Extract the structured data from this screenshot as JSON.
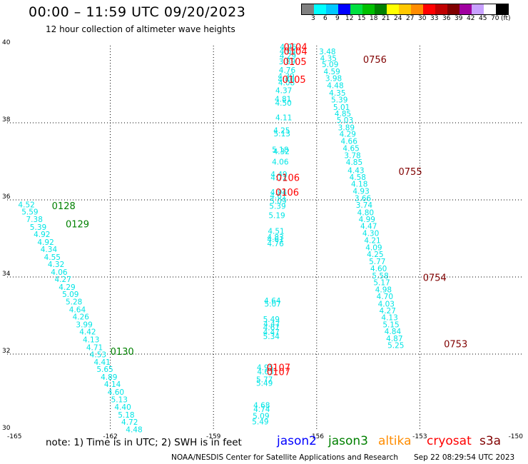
{
  "header": {
    "title": "00:00 – 11:59 UTC 09/20/2023",
    "subtitle": "12 hour collection of altimeter wave heights"
  },
  "color_scale": {
    "labels": [
      "3",
      "6",
      "9",
      "12",
      "15",
      "18",
      "21",
      "24",
      "27",
      "30",
      "33",
      "36",
      "39",
      "42",
      "45",
      "70"
    ],
    "unit_label": "(ft)",
    "colors": [
      "#808080",
      "#00ffff",
      "#00c8ff",
      "#0000ff",
      "#00e040",
      "#00c000",
      "#008000",
      "#ffff00",
      "#ffc800",
      "#ff8c00",
      "#ff0000",
      "#c00000",
      "#800000",
      "#a000a0",
      "#c8a0ff",
      "#ffffff",
      "#000000"
    ]
  },
  "footer": {
    "note": "note:  1) Time is in UTC;  2) SWH is in feet",
    "credit": "NOAA/NESDIS Center for Satellite Applications and Research",
    "timestamp": "Sep 22 08:29:54 UTC 2023"
  },
  "legend": [
    {
      "name": "jason2",
      "color": "#0000ff"
    },
    {
      "name": "jason3",
      "color": "#008000"
    },
    {
      "name": "altika",
      "color": "#ff8c00"
    },
    {
      "name": "cryosat",
      "color": "#ff0000"
    },
    {
      "name": "s3a",
      "color": "#800000"
    }
  ],
  "chart_data": {
    "type": "scatter",
    "title": "00:00 – 11:59 UTC 09/20/2023",
    "subtitle": "12 hour collection of altimeter wave heights",
    "xlim": [
      -165,
      -150
    ],
    "ylim": [
      30,
      40
    ],
    "x_ticks": [
      "-165",
      "-162",
      "-159",
      "-156",
      "-153",
      "-150"
    ],
    "y_ticks": [
      "30",
      "32",
      "34",
      "36",
      "38",
      "40"
    ],
    "grid": true,
    "point_color": "#00e5e5",
    "tracks": [
      {
        "satellite": "jason3",
        "color": "#008000",
        "points": [
          [
            -164.68,
            35.88,
            "4.52"
          ],
          [
            -164.58,
            35.69,
            "5.59"
          ],
          [
            -164.45,
            35.5,
            "7.38"
          ],
          [
            -164.34,
            35.3,
            "5.39"
          ],
          [
            -164.23,
            35.11,
            "4.92"
          ],
          [
            -164.12,
            34.91,
            "4.92"
          ],
          [
            -164.03,
            34.72,
            "4.34"
          ],
          [
            -163.93,
            34.52,
            "4.55"
          ],
          [
            -163.82,
            34.33,
            "4.32"
          ],
          [
            -163.73,
            34.13,
            "4.06"
          ],
          [
            -163.62,
            33.94,
            "4.27"
          ],
          [
            -163.5,
            33.74,
            "4.29"
          ],
          [
            -163.4,
            33.56,
            "5.09"
          ],
          [
            -163.3,
            33.36,
            "5.28"
          ],
          [
            -163.2,
            33.16,
            "4.64"
          ],
          [
            -163.1,
            32.97,
            "4.26"
          ],
          [
            -163.0,
            32.77,
            "3.99"
          ],
          [
            -162.9,
            32.58,
            "4.42"
          ],
          [
            -162.8,
            32.38,
            "4.13"
          ],
          [
            -162.7,
            32.18,
            "4.71"
          ],
          [
            -162.6,
            31.99,
            "4.53"
          ],
          [
            -162.48,
            31.8,
            "4.41"
          ],
          [
            -162.4,
            31.61,
            "5.65"
          ],
          [
            -162.28,
            31.41,
            "4.89"
          ],
          [
            -162.18,
            31.22,
            "4.14"
          ],
          [
            -162.08,
            31.02,
            "4.60"
          ],
          [
            -161.98,
            30.82,
            "5.13"
          ],
          [
            -161.88,
            30.63,
            "4.40"
          ],
          [
            -161.78,
            30.43,
            "5.18"
          ],
          [
            -161.68,
            30.24,
            "4.72"
          ],
          [
            -161.55,
            30.05,
            "4.48"
          ]
        ],
        "time_labels": [
          {
            "x": -163.7,
            "y": 35.85,
            "label": "0128"
          },
          {
            "x": -163.3,
            "y": 35.38,
            "label": "0129"
          },
          {
            "x": -162.0,
            "y": 32.07,
            "label": "0130"
          }
        ]
      },
      {
        "satellite": "cryosat",
        "color": "#ff0000",
        "points": [
          [
            -157.07,
            39.97,
            "4.96"
          ],
          [
            -157.08,
            39.86,
            "4.64"
          ],
          [
            -157.08,
            39.74,
            "4.29"
          ],
          [
            -157.1,
            39.59,
            "3.89"
          ],
          [
            -157.1,
            39.37,
            "4.76"
          ],
          [
            -157.13,
            39.21,
            "4.39"
          ],
          [
            -157.13,
            39.13,
            "4.40"
          ],
          [
            -157.12,
            39.05,
            "4.08"
          ],
          [
            -157.2,
            38.84,
            "4.37"
          ],
          [
            -157.22,
            38.62,
            "4.81"
          ],
          [
            -157.21,
            38.52,
            "4.50"
          ],
          [
            -157.2,
            38.14,
            "4.11"
          ],
          [
            -157.26,
            37.81,
            "4.25"
          ],
          [
            -157.25,
            37.72,
            "5.13"
          ],
          [
            -157.3,
            37.31,
            "5.18"
          ],
          [
            -157.27,
            37.26,
            "4.32"
          ],
          [
            -157.3,
            36.99,
            "4.06"
          ],
          [
            -157.34,
            36.67,
            "4.49"
          ],
          [
            -157.34,
            36.58,
            "4.72"
          ],
          [
            -157.35,
            36.2,
            "4.94"
          ],
          [
            -157.36,
            36.11,
            "4.61"
          ],
          [
            -157.36,
            35.97,
            "5.09"
          ],
          [
            -157.38,
            35.84,
            "5.39"
          ],
          [
            -157.4,
            35.6,
            "5.19"
          ],
          [
            -157.42,
            35.19,
            "4.51"
          ],
          [
            -157.44,
            35.04,
            "4.83"
          ],
          [
            -157.44,
            34.98,
            "4.61"
          ],
          [
            -157.44,
            34.87,
            "4.76"
          ],
          [
            -157.53,
            33.39,
            "4.64"
          ],
          [
            -157.52,
            33.31,
            "5.07"
          ],
          [
            -157.56,
            32.91,
            "5.49"
          ],
          [
            -157.55,
            32.79,
            "4.47"
          ],
          [
            -157.56,
            32.69,
            "4.67"
          ],
          [
            -157.56,
            32.57,
            "4.47"
          ],
          [
            -157.56,
            32.46,
            "5.34"
          ],
          [
            -157.74,
            31.66,
            "4.95"
          ],
          [
            -157.73,
            31.55,
            "4.63"
          ],
          [
            -157.76,
            31.34,
            "5.77"
          ],
          [
            -157.76,
            31.25,
            "5.49"
          ],
          [
            -157.84,
            30.68,
            "4.68"
          ],
          [
            -157.84,
            30.57,
            "4.74"
          ],
          [
            -157.86,
            30.4,
            "5.09"
          ],
          [
            -157.88,
            30.25,
            "5.49"
          ]
        ],
        "time_labels": [
          {
            "x": -156.96,
            "y": 39.97,
            "label": "0104"
          },
          {
            "x": -156.96,
            "y": 39.86,
            "label": "0104"
          },
          {
            "x": -156.98,
            "y": 39.59,
            "label": "0105"
          },
          {
            "x": -157.0,
            "y": 39.13,
            "label": "0105"
          },
          {
            "x": -157.18,
            "y": 36.58,
            "label": "0106"
          },
          {
            "x": -157.2,
            "y": 36.2,
            "label": "0106"
          },
          {
            "x": -157.45,
            "y": 31.66,
            "label": "0107"
          },
          {
            "x": -157.45,
            "y": 31.55,
            "label": "0107"
          }
        ]
      },
      {
        "satellite": "s3a",
        "color": "#800000",
        "points": [
          [
            -155.93,
            39.85,
            "3.48"
          ],
          [
            -155.9,
            39.68,
            "4.35"
          ],
          [
            -155.85,
            39.52,
            "5.09"
          ],
          [
            -155.8,
            39.33,
            "4.59"
          ],
          [
            -155.75,
            39.16,
            "3.98"
          ],
          [
            -155.7,
            38.97,
            "4.48"
          ],
          [
            -155.64,
            38.78,
            "4.35"
          ],
          [
            -155.58,
            38.6,
            "5.39"
          ],
          [
            -155.52,
            38.41,
            "5.01"
          ],
          [
            -155.48,
            38.24,
            "4.85"
          ],
          [
            -155.42,
            38.07,
            "5.03"
          ],
          [
            -155.38,
            37.88,
            "3.89"
          ],
          [
            -155.34,
            37.71,
            "4.29"
          ],
          [
            -155.3,
            37.53,
            "4.66"
          ],
          [
            -155.24,
            37.34,
            "4.65"
          ],
          [
            -155.2,
            37.16,
            "3.78"
          ],
          [
            -155.15,
            36.98,
            "4.85"
          ],
          [
            -155.1,
            36.77,
            "4.43"
          ],
          [
            -155.05,
            36.59,
            "4.58"
          ],
          [
            -155.0,
            36.42,
            "4.18"
          ],
          [
            -154.95,
            36.23,
            "4.93"
          ],
          [
            -154.9,
            36.05,
            "3.66"
          ],
          [
            -154.86,
            35.87,
            "3.74"
          ],
          [
            -154.82,
            35.68,
            "4.80"
          ],
          [
            -154.78,
            35.5,
            "4.99"
          ],
          [
            -154.73,
            35.32,
            "4.47"
          ],
          [
            -154.67,
            35.14,
            "4.30"
          ],
          [
            -154.62,
            34.95,
            "4.21"
          ],
          [
            -154.58,
            34.77,
            "4.09"
          ],
          [
            -154.54,
            34.59,
            "4.25"
          ],
          [
            -154.48,
            34.41,
            "5.77"
          ],
          [
            -154.44,
            34.22,
            "4.60"
          ],
          [
            -154.39,
            34.04,
            "5.58"
          ],
          [
            -154.35,
            33.86,
            "5.17"
          ],
          [
            -154.3,
            33.68,
            "4.98"
          ],
          [
            -154.26,
            33.5,
            "4.70"
          ],
          [
            -154.22,
            33.31,
            "4.03"
          ],
          [
            -154.18,
            33.13,
            "4.27"
          ],
          [
            -154.12,
            32.95,
            "4.13"
          ],
          [
            -154.08,
            32.77,
            "5.15"
          ],
          [
            -154.03,
            32.59,
            "4.84"
          ],
          [
            -153.98,
            32.41,
            "4.87"
          ],
          [
            -153.94,
            32.23,
            "5.25"
          ]
        ],
        "time_labels": [
          {
            "x": -154.65,
            "y": 39.65,
            "label": "0756"
          },
          {
            "x": -153.62,
            "y": 36.74,
            "label": "0755"
          },
          {
            "x": -152.91,
            "y": 33.99,
            "label": "0754"
          },
          {
            "x": -152.3,
            "y": 32.27,
            "label": "0753"
          }
        ]
      }
    ]
  }
}
